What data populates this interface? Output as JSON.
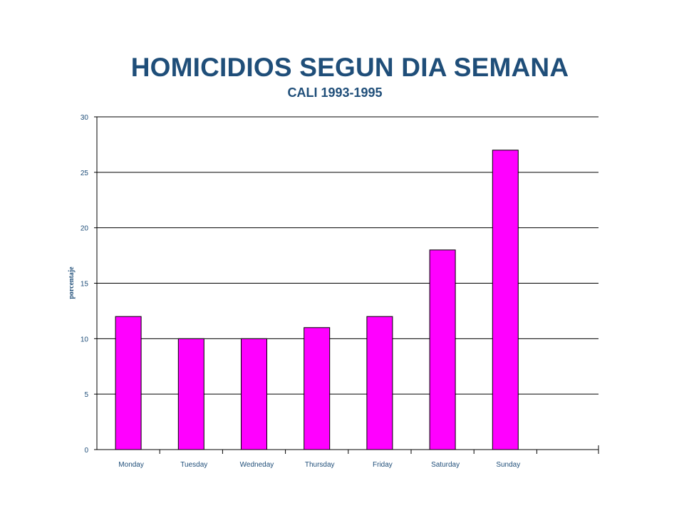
{
  "chart_data": {
    "type": "bar",
    "title": "HOMICIDIOS SEGUN DIA SEMANA",
    "subtitle": "CALI 1993-1995",
    "xlabel": "",
    "ylabel": "porcentaje",
    "categories": [
      "Monday",
      "Tuesday",
      "Wedneday",
      "Thursday",
      "Friday",
      "Saturday",
      "Sunday"
    ],
    "values": [
      12,
      10,
      10,
      11,
      12,
      18,
      27
    ],
    "ylim": [
      0,
      30
    ],
    "yticks": [
      0,
      5,
      10,
      15,
      20,
      25,
      30
    ],
    "grid": true,
    "legend": "none",
    "colors": {
      "bar": "#ff00ff",
      "text": "#1f4e79",
      "axis": "#000000"
    }
  }
}
